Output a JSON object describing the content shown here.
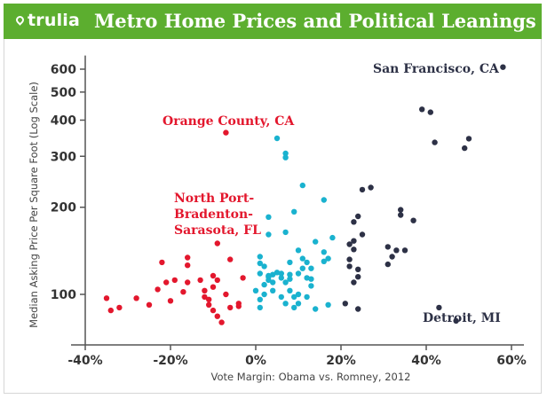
{
  "header": {
    "logo": "trulia",
    "title": "Metro Home Prices and Political Leanings",
    "bg_color": "#5cae2f"
  },
  "chart_data": {
    "type": "scatter",
    "title": "Metro Home Prices and Political Leanings",
    "xlabel": "Vote Margin: Obama vs. Romney, 2012",
    "ylabel": "Median Asking Price Per Square Foot (Log Scale)",
    "x_unit": "%",
    "y_scale": "log",
    "xlim": [
      -42,
      60
    ],
    "ylim": [
      80,
      650
    ],
    "x_ticks": [
      -40,
      -20,
      0,
      20,
      40,
      60
    ],
    "x_tick_labels": [
      "-40%",
      "-20%",
      "0%",
      "20%",
      "40%",
      "60%"
    ],
    "y_ticks": [
      100,
      200,
      300,
      400,
      500,
      600
    ],
    "y_tick_labels": [
      "100",
      "200",
      "300",
      "400",
      "500",
      "600"
    ],
    "grid": false,
    "series": [
      {
        "color": "#e3172d",
        "points": [
          [
            -35,
            97
          ],
          [
            -34,
            88
          ],
          [
            -32,
            90
          ],
          [
            -28,
            97
          ],
          [
            -25,
            92
          ],
          [
            -23,
            104
          ],
          [
            -22,
            129
          ],
          [
            -21,
            110
          ],
          [
            -20,
            95
          ],
          [
            -19,
            112
          ],
          [
            -17,
            102
          ],
          [
            -16,
            126
          ],
          [
            -16,
            134
          ],
          [
            -16,
            110
          ],
          [
            -13,
            112
          ],
          [
            -12,
            103
          ],
          [
            -12,
            98
          ],
          [
            -11,
            92
          ],
          [
            -11,
            96
          ],
          [
            -10,
            88
          ],
          [
            -10,
            116
          ],
          [
            -10,
            106
          ],
          [
            -9,
            150
          ],
          [
            -9,
            112
          ],
          [
            -9,
            84
          ],
          [
            -8,
            80
          ],
          [
            -7,
            362
          ],
          [
            -6,
            132
          ],
          [
            -6,
            90
          ],
          [
            -4,
            93
          ],
          [
            -4,
            91
          ],
          [
            -3,
            114
          ],
          [
            -7,
            100
          ]
        ]
      },
      {
        "color": "#1ab2cf",
        "points": [
          [
            1,
            128
          ],
          [
            1,
            135
          ],
          [
            1,
            118
          ],
          [
            1,
            90
          ],
          [
            0,
            103
          ],
          [
            1,
            96
          ],
          [
            2,
            100
          ],
          [
            2,
            108
          ],
          [
            2,
            125
          ],
          [
            3,
            116
          ],
          [
            3,
            115
          ],
          [
            3,
            112
          ],
          [
            3,
            161
          ],
          [
            3,
            185
          ],
          [
            4,
            117
          ],
          [
            4,
            110
          ],
          [
            4,
            103
          ],
          [
            5,
            119
          ],
          [
            5,
            346
          ],
          [
            6,
            118
          ],
          [
            6,
            114
          ],
          [
            6,
            98
          ],
          [
            7,
            307
          ],
          [
            7,
            297
          ],
          [
            7,
            93
          ],
          [
            7,
            110
          ],
          [
            7,
            164
          ],
          [
            8,
            129
          ],
          [
            8,
            117
          ],
          [
            8,
            113
          ],
          [
            8,
            103
          ],
          [
            9,
            193
          ],
          [
            9,
            98
          ],
          [
            9,
            90
          ],
          [
            10,
            142
          ],
          [
            10,
            118
          ],
          [
            10,
            100
          ],
          [
            10,
            93
          ],
          [
            11,
            238
          ],
          [
            11,
            133
          ],
          [
            11,
            123
          ],
          [
            12,
            114
          ],
          [
            12,
            129
          ],
          [
            12,
            98
          ],
          [
            13,
            107
          ],
          [
            13,
            123
          ],
          [
            13,
            113
          ],
          [
            14,
            152
          ],
          [
            14,
            89
          ],
          [
            16,
            140
          ],
          [
            16,
            212
          ],
          [
            16,
            130
          ],
          [
            17,
            92
          ],
          [
            17,
            133
          ],
          [
            18,
            157
          ]
        ]
      },
      {
        "color": "#2d3146",
        "points": [
          [
            21,
            93
          ],
          [
            22,
            149
          ],
          [
            22,
            132
          ],
          [
            22,
            125
          ],
          [
            23,
            110
          ],
          [
            23,
            143
          ],
          [
            23,
            153
          ],
          [
            23,
            178
          ],
          [
            24,
            115
          ],
          [
            24,
            122
          ],
          [
            24,
            186
          ],
          [
            24,
            89
          ],
          [
            25,
            161
          ],
          [
            25,
            230
          ],
          [
            27,
            234
          ],
          [
            31,
            146
          ],
          [
            31,
            127
          ],
          [
            32,
            135
          ],
          [
            33,
            142
          ],
          [
            34,
            188
          ],
          [
            34,
            196
          ],
          [
            35,
            142
          ],
          [
            37,
            180
          ],
          [
            39,
            436
          ],
          [
            41,
            426
          ],
          [
            42,
            335
          ],
          [
            43,
            90
          ],
          [
            47,
            81
          ],
          [
            49,
            320
          ],
          [
            50,
            345
          ],
          [
            58,
            610
          ]
        ]
      }
    ],
    "annotations": [
      {
        "text": "San Francisco, CA",
        "color": "#2d3146"
      },
      {
        "text": "Orange County, CA",
        "color": "#e3172d"
      },
      {
        "text": "North Port-",
        "color": "#e3172d"
      },
      {
        "text": "Bradenton-",
        "color": "#e3172d"
      },
      {
        "text": "Sarasota, FL",
        "color": "#e3172d"
      },
      {
        "text": "Detroit, MI",
        "color": "#2d3146"
      }
    ]
  }
}
